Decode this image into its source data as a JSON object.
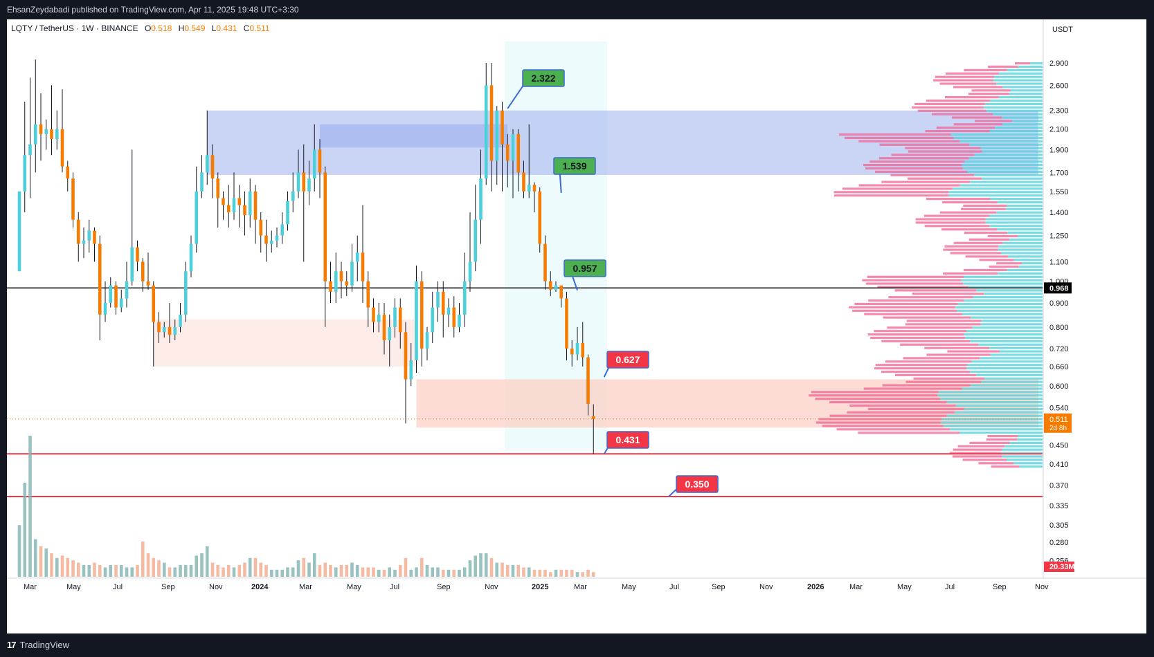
{
  "header": {
    "publisher": "EhsanZeydabadi published on TradingView.com, Apr 11, 2025 19:48 UTC+3:30"
  },
  "legend": {
    "symbol": "LQTY / TetherUS · 1W · BINANCE",
    "o_label": "O",
    "o": "0.518",
    "h_label": "H",
    "h": "0.549",
    "l_label": "L",
    "l": "0.431",
    "c_label": "C",
    "c": "0.511"
  },
  "footer": {
    "brand": "TradingView",
    "logo": "17"
  },
  "colors": {
    "up": "#4dd0d9",
    "down": "#f57c00",
    "label_green": "#4caf50",
    "label_red": "#f23645"
  },
  "chart_data": {
    "type": "candlestick",
    "currency_label": "USDT",
    "y_ticks": [
      "2.900",
      "2.600",
      "2.300",
      "2.100",
      "1.900",
      "1.700",
      "1.550",
      "1.400",
      "1.250",
      "1.100",
      "1.000",
      "0.900",
      "0.800",
      "0.720",
      "0.660",
      "0.600",
      "0.540",
      "0.450",
      "0.410",
      "0.370",
      "0.335",
      "0.305",
      "0.280",
      "0.256"
    ],
    "x_ticks": [
      "Mar",
      "May",
      "Jul",
      "Sep",
      "Nov",
      "2024",
      "Mar",
      "May",
      "Jul",
      "Sep",
      "Nov",
      "2025",
      "Mar",
      "May",
      "Jul",
      "Sep",
      "Nov",
      "2026",
      "Mar",
      "May",
      "Jul",
      "Sep",
      "Nov"
    ],
    "current_price": "0.511",
    "countdown": "2d 8h",
    "black_line_price": "0.968",
    "volume_label": "20.33M",
    "price_labels": [
      {
        "value": "2.322",
        "color": "green"
      },
      {
        "value": "1.539",
        "color": "green"
      },
      {
        "value": "0.957",
        "color": "green"
      },
      {
        "value": "0.627",
        "color": "red"
      },
      {
        "value": "0.431",
        "color": "red"
      },
      {
        "value": "0.350",
        "color": "red"
      }
    ],
    "zones": [
      {
        "kind": "supply",
        "from": 1.68,
        "to": 2.3
      },
      {
        "kind": "demand",
        "from": 0.66,
        "to": 0.83
      },
      {
        "kind": "demand",
        "from": 0.49,
        "to": 0.62
      }
    ],
    "support_lines": [
      0.431,
      0.35
    ],
    "candles": [
      [
        1.05,
        1.55,
        1.55,
        1.55
      ],
      [
        1.55,
        1.85,
        2.4,
        1.4
      ],
      [
        1.85,
        1.95,
        2.7,
        1.5
      ],
      [
        1.95,
        2.15,
        2.95,
        1.7
      ],
      [
        2.15,
        2.05,
        2.5,
        1.8
      ],
      [
        2.05,
        2.1,
        2.2,
        1.9
      ],
      [
        2.1,
        2.0,
        2.6,
        1.85
      ],
      [
        2.0,
        2.1,
        2.3,
        1.9
      ],
      [
        2.1,
        1.75,
        2.55,
        1.7
      ],
      [
        1.75,
        1.65,
        1.8,
        1.55
      ],
      [
        1.65,
        1.35,
        1.7,
        1.3
      ],
      [
        1.35,
        1.2,
        1.4,
        1.1
      ],
      [
        1.2,
        1.22,
        1.3,
        1.12
      ],
      [
        1.22,
        1.28,
        1.35,
        1.15
      ],
      [
        1.28,
        1.2,
        1.3,
        1.1
      ],
      [
        1.2,
        0.85,
        1.25,
        0.75
      ],
      [
        0.85,
        0.9,
        1.0,
        0.82
      ],
      [
        0.9,
        0.98,
        1.02,
        0.88
      ],
      [
        0.98,
        0.88,
        1.0,
        0.85
      ],
      [
        0.88,
        0.92,
        0.96,
        0.86
      ],
      [
        0.92,
        1.0,
        1.1,
        0.88
      ],
      [
        1.0,
        1.18,
        1.9,
        0.98
      ],
      [
        1.18,
        1.1,
        1.22,
        1.05
      ],
      [
        1.1,
        1.0,
        1.12,
        0.95
      ],
      [
        1.0,
        0.98,
        1.15,
        0.96
      ],
      [
        0.98,
        0.82,
        1.0,
        0.66
      ],
      [
        0.82,
        0.78,
        0.86,
        0.74
      ],
      [
        0.78,
        0.8,
        0.82,
        0.76
      ],
      [
        0.8,
        0.77,
        0.9,
        0.74
      ],
      [
        0.77,
        0.8,
        0.83,
        0.75
      ],
      [
        0.8,
        0.85,
        0.9,
        0.78
      ],
      [
        0.85,
        1.05,
        1.1,
        0.82
      ],
      [
        1.05,
        1.2,
        1.25,
        1.02
      ],
      [
        1.2,
        1.55,
        1.75,
        1.15
      ],
      [
        1.55,
        1.7,
        1.85,
        1.5
      ],
      [
        1.7,
        1.85,
        2.3,
        1.6
      ],
      [
        1.85,
        1.65,
        1.95,
        1.5
      ],
      [
        1.65,
        1.5,
        1.7,
        1.3
      ],
      [
        1.5,
        1.45,
        1.55,
        1.35
      ],
      [
        1.45,
        1.4,
        1.6,
        1.3
      ],
      [
        1.4,
        1.5,
        1.7,
        1.35
      ],
      [
        1.5,
        1.45,
        1.6,
        1.3
      ],
      [
        1.45,
        1.38,
        1.55,
        1.25
      ],
      [
        1.38,
        1.55,
        1.65,
        1.3
      ],
      [
        1.55,
        1.35,
        1.6,
        1.2
      ],
      [
        1.35,
        1.25,
        1.4,
        1.15
      ],
      [
        1.25,
        1.2,
        1.35,
        1.1
      ],
      [
        1.2,
        1.22,
        1.28,
        1.15
      ],
      [
        1.22,
        1.25,
        1.3,
        1.18
      ],
      [
        1.25,
        1.32,
        1.4,
        1.2
      ],
      [
        1.32,
        1.48,
        1.55,
        1.28
      ],
      [
        1.48,
        1.55,
        1.7,
        1.4
      ],
      [
        1.55,
        1.7,
        1.9,
        1.5
      ],
      [
        1.7,
        1.55,
        1.95,
        1.1
      ],
      [
        1.55,
        1.65,
        1.8,
        1.45
      ],
      [
        1.65,
        1.9,
        2.15,
        1.55
      ],
      [
        1.9,
        1.7,
        2.0,
        1.5
      ],
      [
        1.7,
        1.0,
        1.75,
        0.8
      ],
      [
        1.0,
        0.95,
        1.1,
        0.9
      ],
      [
        0.95,
        1.05,
        1.15,
        0.9
      ],
      [
        1.05,
        1.0,
        1.1,
        0.92
      ],
      [
        1.0,
        0.98,
        1.05,
        0.93
      ],
      [
        0.98,
        1.1,
        1.2,
        0.95
      ],
      [
        1.1,
        1.15,
        1.25,
        1.0
      ],
      [
        1.15,
        1.0,
        1.45,
        0.9
      ],
      [
        1.0,
        0.88,
        1.05,
        0.8
      ],
      [
        0.88,
        0.82,
        0.92,
        0.78
      ],
      [
        0.82,
        0.85,
        0.9,
        0.78
      ],
      [
        0.85,
        0.75,
        0.9,
        0.7
      ],
      [
        0.75,
        0.8,
        0.85,
        0.66
      ],
      [
        0.8,
        0.88,
        0.92,
        0.76
      ],
      [
        0.88,
        0.78,
        0.92,
        0.72
      ],
      [
        0.78,
        0.62,
        0.82,
        0.5
      ],
      [
        0.62,
        0.68,
        0.74,
        0.6
      ],
      [
        0.68,
        1.0,
        1.08,
        0.64
      ],
      [
        1.0,
        0.72,
        1.05,
        0.66
      ],
      [
        0.72,
        0.78,
        0.8,
        0.68
      ],
      [
        0.78,
        0.88,
        0.95,
        0.74
      ],
      [
        0.88,
        0.95,
        1.0,
        0.82
      ],
      [
        0.95,
        0.85,
        1.0,
        0.76
      ],
      [
        0.85,
        0.88,
        0.92,
        0.8
      ],
      [
        0.88,
        0.8,
        0.93,
        0.76
      ],
      [
        0.8,
        0.85,
        0.9,
        0.78
      ],
      [
        0.85,
        1.0,
        1.15,
        0.8
      ],
      [
        1.0,
        1.1,
        1.4,
        0.95
      ],
      [
        1.1,
        1.35,
        1.6,
        1.05
      ],
      [
        1.35,
        1.65,
        1.9,
        1.2
      ],
      [
        1.65,
        2.6,
        2.9,
        1.6
      ],
      [
        2.6,
        1.8,
        2.9,
        1.55
      ],
      [
        1.8,
        2.3,
        2.35,
        1.6
      ],
      [
        2.3,
        1.95,
        2.4,
        1.55
      ],
      [
        1.95,
        1.8,
        2.05,
        1.58
      ],
      [
        1.8,
        2.05,
        2.1,
        1.5
      ],
      [
        2.05,
        1.7,
        2.1,
        1.55
      ],
      [
        1.7,
        1.55,
        1.8,
        1.5
      ],
      [
        1.55,
        1.6,
        2.15,
        1.5
      ],
      [
        1.6,
        1.55,
        1.62,
        1.4
      ],
      [
        1.55,
        1.2,
        1.58,
        1.15
      ],
      [
        1.2,
        1.0,
        1.25,
        0.96
      ],
      [
        1.0,
        0.96,
        1.05,
        0.93
      ],
      [
        0.96,
        0.98,
        1.0,
        0.95
      ],
      [
        0.98,
        0.92,
        0.96,
        0.88
      ],
      [
        0.92,
        0.72,
        0.95,
        0.68
      ],
      [
        0.72,
        0.7,
        0.75,
        0.66
      ],
      [
        0.7,
        0.74,
        0.8,
        0.68
      ],
      [
        0.74,
        0.69,
        0.82,
        0.66
      ],
      [
        0.69,
        0.55,
        0.7,
        0.52
      ],
      [
        0.518,
        0.511,
        0.549,
        0.431
      ]
    ],
    "volumes": [
      22,
      40,
      60,
      16,
      13,
      12,
      10,
      8,
      9,
      8,
      7,
      6,
      5,
      5,
      6,
      5,
      4,
      5,
      5,
      5,
      4,
      4,
      5,
      15,
      10,
      8,
      7,
      6,
      4,
      4,
      5,
      5,
      5,
      9,
      10,
      13,
      6,
      5,
      4,
      5,
      4,
      5,
      6,
      8,
      8,
      6,
      5,
      3,
      3,
      3,
      4,
      4,
      7,
      8,
      6,
      10,
      5,
      6,
      5,
      4,
      5,
      5,
      6,
      5,
      4,
      4,
      4,
      3,
      3,
      4,
      3,
      5,
      8,
      3,
      4,
      8,
      5,
      4,
      4,
      3,
      3,
      3,
      3,
      4,
      7,
      9,
      10,
      10,
      8,
      6,
      6,
      5,
      5,
      5,
      4,
      4,
      3,
      3,
      3,
      2,
      3,
      3,
      3,
      3,
      2,
      2,
      3,
      2
    ]
  }
}
